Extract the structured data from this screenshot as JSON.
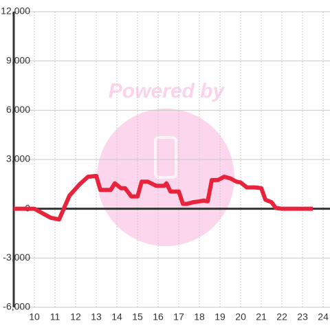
{
  "chart_data": {
    "type": "line",
    "watermark": "Powered by",
    "x": [
      9.0,
      10.0,
      10.5,
      10.8,
      11.2,
      11.7,
      12.2,
      12.6,
      13.0,
      13.2,
      13.7,
      13.9,
      14.2,
      14.4,
      14.7,
      15.0,
      15.2,
      15.5,
      15.9,
      16.3,
      16.4,
      16.6,
      17.0,
      17.2,
      17.4,
      17.7,
      18.0,
      18.2,
      18.4,
      18.6,
      18.9,
      19.2,
      19.5,
      19.8,
      20.0,
      20.3,
      20.7,
      21.0,
      21.2,
      21.5,
      21.7,
      22.0,
      23.5
    ],
    "values": [
      0,
      0,
      -350,
      -550,
      -650,
      800,
      1500,
      1950,
      2000,
      1150,
      1150,
      1550,
      1250,
      1250,
      750,
      750,
      1650,
      1650,
      1400,
      1400,
      1550,
      1050,
      1050,
      300,
      300,
      400,
      450,
      500,
      450,
      1750,
      1750,
      1950,
      1850,
      1650,
      1600,
      1300,
      1300,
      1250,
      550,
      400,
      50,
      0,
      0
    ],
    "color": "#e8243c",
    "xlim": [
      9,
      24.33
    ],
    "xticks": [
      10,
      11,
      12,
      13,
      14,
      15,
      16,
      17,
      18,
      19,
      20,
      21,
      22,
      23,
      24
    ],
    "ylim": [
      -6000,
      12000
    ],
    "yticks": [
      {
        "value": -6000,
        "label": "-6,000"
      },
      {
        "value": -3000,
        "label": "-3,000"
      },
      0,
      {
        "value": 3000,
        "label": "3,000"
      },
      {
        "value": 6000,
        "label": "6,000"
      },
      {
        "value": 9000,
        "label": "9,000"
      },
      {
        "value": 12000,
        "label": "12,000"
      }
    ],
    "grid": true
  }
}
